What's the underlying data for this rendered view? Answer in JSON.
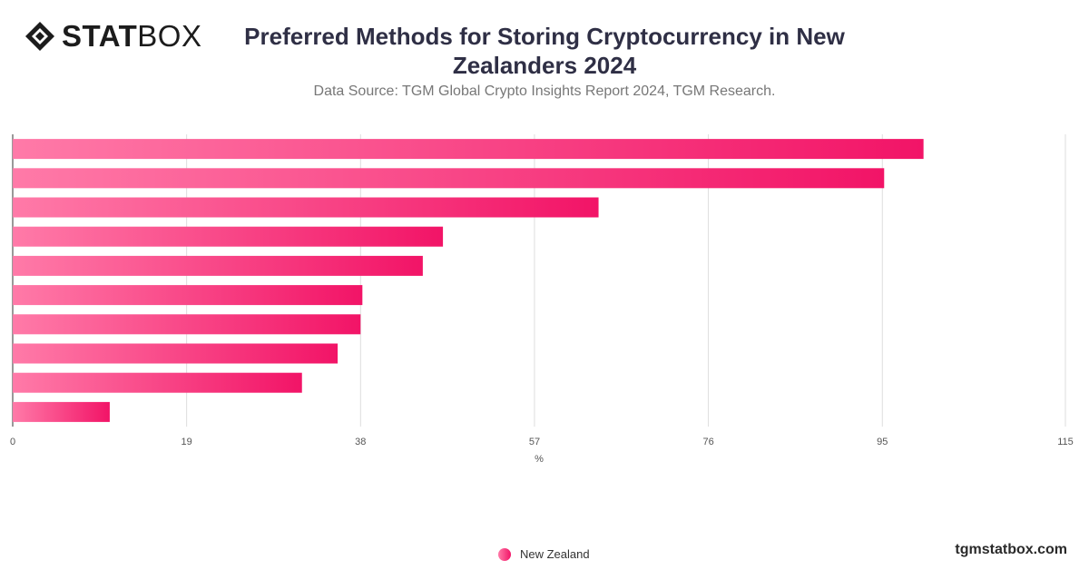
{
  "brand": {
    "logo_bold": "STAT",
    "logo_light": "BOX",
    "watermark": "tgmstatbox.com"
  },
  "title": "Preferred Methods for Storing Cryptocurrency in New Zealanders 2024",
  "subtitle": "Data Source: TGM Global Crypto Insights Report 2024, TGM Research.",
  "legend": {
    "label": "New Zealand"
  },
  "colors": {
    "bar_start": "#ff7aa8",
    "bar_end": "#f21467",
    "grid": "#dddddd"
  },
  "chart_data": {
    "type": "bar",
    "orientation": "horizontal",
    "title": "Preferred Methods for Storing Cryptocurrency in New Zealanders 2024",
    "subtitle": "Data Source: TGM Global Crypto Insights Report 2024, TGM Research.",
    "xlabel": "%",
    "xlim": [
      0,
      115
    ],
    "xticks": [
      0,
      19,
      38,
      57,
      76,
      95,
      115
    ],
    "grid": true,
    "legend_position": "bottom",
    "series": [
      {
        "name": "New Zealand",
        "values": [
          99.5,
          95.2,
          64,
          47,
          44.8,
          38.2,
          38,
          35.5,
          31.6,
          10.6
        ]
      }
    ]
  }
}
